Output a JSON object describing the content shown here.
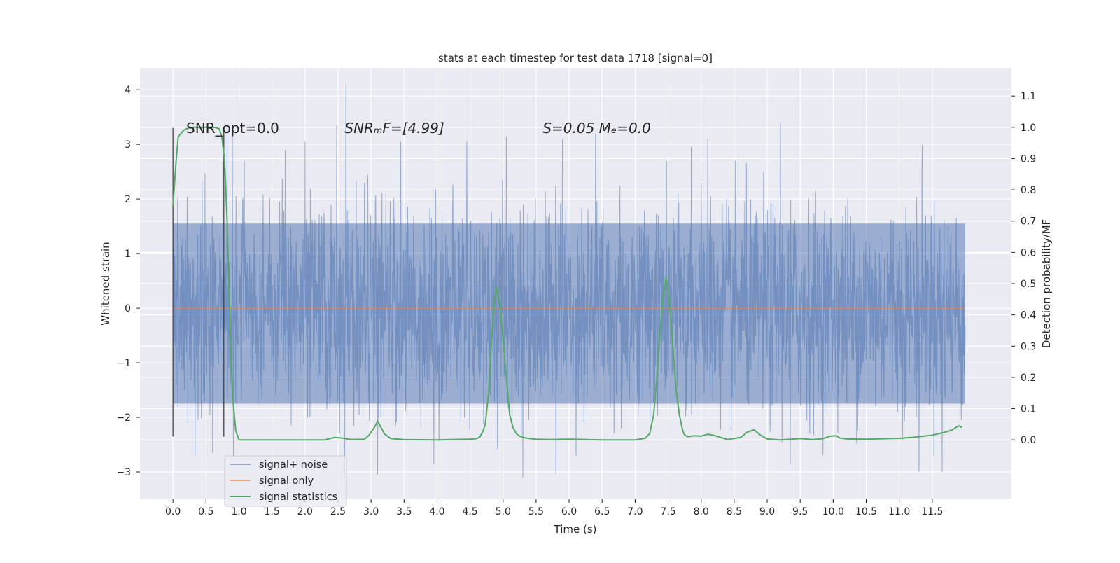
{
  "chart_data": {
    "type": "line",
    "title": "stats at each timestep for test data 1718 [signal=0]",
    "xlabel": "Time (s)",
    "ylabel": "Whitened strain",
    "y2label": "Detection probability/MF",
    "xlim": [
      -0.5,
      12.7
    ],
    "ylim": [
      -3.5,
      4.4
    ],
    "y2lim": [
      -0.19,
      1.19
    ],
    "x_ticks": [
      0.0,
      0.5,
      1.0,
      1.5,
      2.0,
      2.5,
      3.0,
      3.5,
      4.0,
      4.5,
      5.0,
      5.5,
      6.0,
      6.5,
      7.0,
      7.5,
      8.0,
      8.5,
      9.0,
      9.5,
      10.0,
      10.5,
      11.0,
      11.5
    ],
    "x_tick_labels": [
      "0.0",
      "0.5",
      "1.0",
      "1.5",
      "2.0",
      "2.5",
      "3.0",
      "3.5",
      "4.0",
      "4.5",
      "5.0",
      "5.5",
      "6.0",
      "6.5",
      "7.0",
      "7.5",
      "8.0",
      "8.5",
      "9.0",
      "9.5",
      "10.0",
      "10.5",
      "11.0",
      "11.5"
    ],
    "y_ticks": [
      -3,
      -2,
      -1,
      0,
      1,
      2,
      3,
      4
    ],
    "y_tick_labels": [
      "−3",
      "−2",
      "−1",
      "0",
      "1",
      "2",
      "3",
      "4"
    ],
    "y2_ticks": [
      0.0,
      0.1,
      0.2,
      0.3,
      0.4,
      0.5,
      0.6,
      0.7,
      0.8,
      0.9,
      1.0,
      1.1
    ],
    "y2_tick_labels": [
      "0.0",
      "0.1",
      "0.2",
      "0.3",
      "0.4",
      "0.5",
      "0.6",
      "0.7",
      "0.8",
      "0.9",
      "1.0",
      "1.1"
    ],
    "grid": true,
    "legend_position": "lower-left",
    "annotations": [
      {
        "text": "SNR_opt=0.0",
        "x": 0.2,
        "y": 3.3
      },
      {
        "text": "SNRₘF=[4.99]",
        "x": 2.6,
        "y": 3.3
      },
      {
        "text": "S=0.05   Mₑ=0.0",
        "x": 5.6,
        "y": 3.3
      }
    ],
    "vlines": [
      {
        "x": 0.0,
        "ymin": -2.35,
        "ymax": 3.3
      },
      {
        "x": 0.77,
        "ymin": -2.35,
        "ymax": 3.3
      }
    ],
    "series": [
      {
        "name": "signal+ noise",
        "color": "#4c72b0",
        "opacity": 0.5,
        "description": "dense whitened noise trace spanning x 0.0 to 12.0, core band about -1.8 to 1.6, peaks to 4.1 near x=2.6",
        "x_range": [
          0.0,
          12.0
        ],
        "peaks": [
          {
            "x": 2.62,
            "y": 4.1
          },
          {
            "x": 2.48,
            "y": 3.35
          },
          {
            "x": 0.82,
            "y": 3.3
          },
          {
            "x": 0.9,
            "y": 3.25
          },
          {
            "x": 9.2,
            "y": 3.4
          },
          {
            "x": 6.4,
            "y": 3.2
          },
          {
            "x": 5.05,
            "y": 3.15
          },
          {
            "x": 5.9,
            "y": 3.1
          },
          {
            "x": 4.45,
            "y": 3.05
          },
          {
            "x": 3.45,
            "y": 3.05
          },
          {
            "x": 1.7,
            "y": 2.9
          },
          {
            "x": 2.0,
            "y": 3.05
          },
          {
            "x": 8.1,
            "y": 3.1
          },
          {
            "x": 11.35,
            "y": 3.0
          },
          {
            "x": 7.85,
            "y": 2.95
          },
          {
            "x": 2.6,
            "y": -3.15
          },
          {
            "x": 3.1,
            "y": -3.05
          },
          {
            "x": 5.3,
            "y": -3.1
          },
          {
            "x": 5.8,
            "y": -3.05
          },
          {
            "x": 11.3,
            "y": -3.0
          },
          {
            "x": 11.65,
            "y": -3.0
          },
          {
            "x": 9.35,
            "y": -2.85
          },
          {
            "x": 3.95,
            "y": -2.85
          },
          {
            "x": 0.6,
            "y": -2.65
          }
        ]
      },
      {
        "name": "signal only",
        "color": "#dd8452",
        "x": [
          0.0,
          12.0
        ],
        "y": [
          0.0,
          0.0
        ]
      },
      {
        "name": "signal statistics",
        "color": "#55a868",
        "axis": "right",
        "x": [
          0.0,
          0.05,
          0.08,
          0.12,
          0.16,
          0.2,
          0.3,
          0.4,
          0.5,
          0.6,
          0.65,
          0.7,
          0.74,
          0.78,
          0.82,
          0.86,
          0.9,
          0.95,
          1.0,
          1.5,
          2.0,
          2.3,
          2.45,
          2.55,
          2.7,
          2.9,
          2.97,
          3.05,
          3.1,
          3.2,
          3.3,
          3.5,
          4.0,
          4.5,
          4.6,
          4.65,
          4.7,
          4.73,
          4.78,
          4.82,
          4.86,
          4.9,
          4.95,
          5.0,
          5.1,
          5.15,
          5.2,
          5.25,
          5.3,
          5.4,
          5.5,
          5.7,
          6.0,
          6.5,
          7.0,
          7.15,
          7.22,
          7.28,
          7.33,
          7.38,
          7.42,
          7.47,
          7.52,
          7.57,
          7.62,
          7.67,
          7.72,
          7.75,
          7.8,
          7.85,
          7.9,
          8.0,
          8.1,
          8.2,
          8.4,
          8.6,
          8.7,
          8.8,
          8.9,
          9.0,
          9.2,
          9.5,
          9.7,
          9.85,
          9.95,
          10.05,
          10.1,
          10.2,
          10.5,
          11.0,
          11.2,
          11.5,
          11.7,
          11.8,
          11.9,
          11.95
        ],
        "y": [
          0.75,
          0.9,
          0.97,
          0.98,
          0.99,
          0.995,
          1.0,
          1.0,
          1.0,
          1.0,
          0.999,
          0.995,
          0.97,
          0.9,
          0.7,
          0.4,
          0.15,
          0.03,
          0.0,
          0.0,
          0.0,
          0.0,
          0.008,
          0.006,
          0.001,
          0.002,
          0.015,
          0.04,
          0.06,
          0.02,
          0.004,
          0.001,
          0.0,
          0.002,
          0.004,
          0.01,
          0.03,
          0.05,
          0.15,
          0.3,
          0.43,
          0.49,
          0.44,
          0.32,
          0.08,
          0.04,
          0.02,
          0.012,
          0.008,
          0.004,
          0.002,
          0.001,
          0.002,
          0.0,
          0.0,
          0.005,
          0.02,
          0.08,
          0.2,
          0.35,
          0.45,
          0.52,
          0.44,
          0.3,
          0.16,
          0.08,
          0.03,
          0.015,
          0.01,
          0.012,
          0.013,
          0.012,
          0.018,
          0.014,
          0.001,
          0.008,
          0.025,
          0.032,
          0.015,
          0.003,
          0.0,
          0.004,
          0.001,
          0.004,
          0.012,
          0.013,
          0.006,
          0.003,
          0.002,
          0.005,
          0.008,
          0.015,
          0.025,
          0.032,
          0.045,
          0.04
        ]
      }
    ]
  }
}
